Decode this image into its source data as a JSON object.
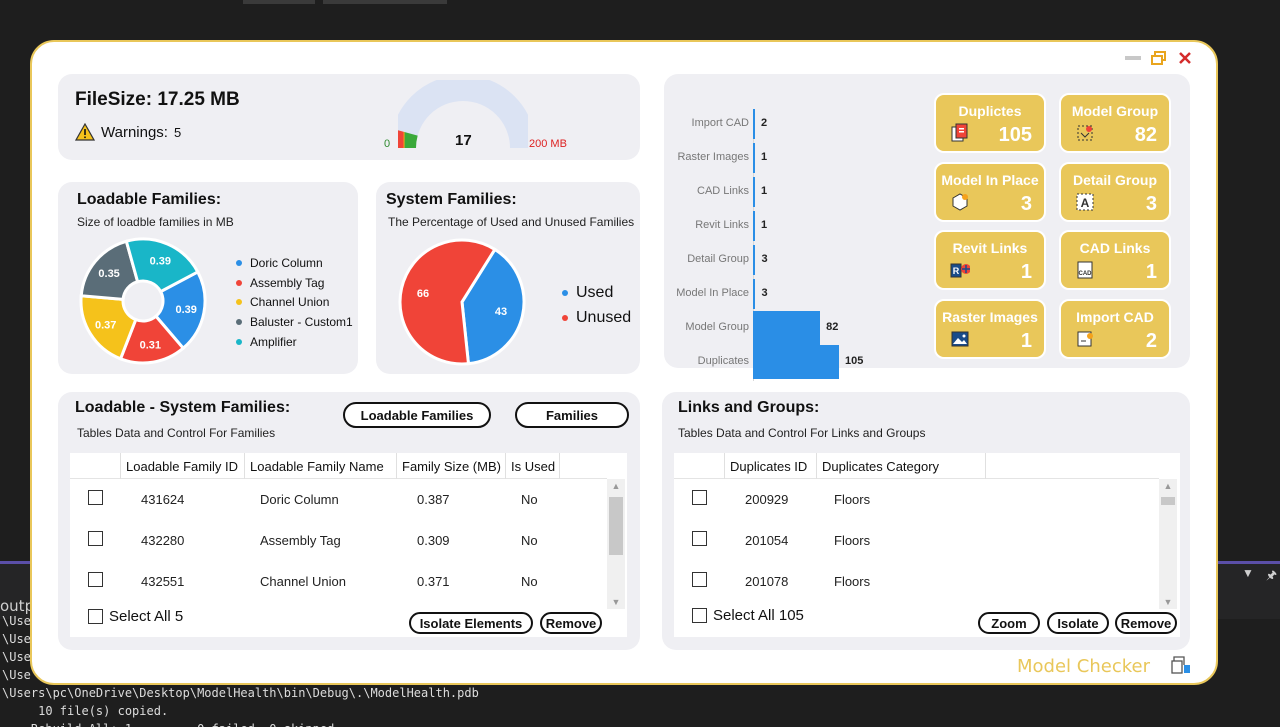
{
  "ide": {
    "output_title": "outpu",
    "log_lines": [
      "\\Use",
      "\\Use",
      "\\Use",
      "\\Use",
      "\\Users\\pc\\OneDrive\\Desktop\\ModelHealth\\bin\\Debug\\.\\ModelHealth.pdb",
      "     10 file(s) copied.",
      "    Rebuild All: 1 ... ... 0 failed, 0 skipped"
    ]
  },
  "window": {
    "minimize_icon": "minimize-icon",
    "restore_icon": "restore-icon",
    "close_icon": "close-icon",
    "brand": "Model Checker",
    "accent_color": "#e9c75a"
  },
  "filesize": {
    "title": "FileSize: 17.25 MB",
    "warnings_label": "Warnings:",
    "warnings_count": "5",
    "gauge_value": "17",
    "gauge_min": "0",
    "gauge_max": "200 MB",
    "gauge_fraction": 0.085
  },
  "loadable": {
    "title": "Loadable Families:",
    "subtitle": "Size of loadble families in MB",
    "chart_data": {
      "type": "pie",
      "series": [
        {
          "name": "Doric Column",
          "value": 0.39,
          "label": "0.39",
          "color": "#2b8fe6"
        },
        {
          "name": "Assembly Tag",
          "value": 0.31,
          "label": "0.31",
          "color": "#f04438"
        },
        {
          "name": "Channel Union",
          "value": 0.37,
          "label": "0.37",
          "color": "#f5c21b"
        },
        {
          "name": "Baluster - Custom1",
          "value": 0.35,
          "label": "0.35",
          "color": "#5a6d78"
        },
        {
          "name": "Amplifier",
          "value": 0.39,
          "label": "0.39",
          "color": "#19b6c8"
        }
      ]
    }
  },
  "system": {
    "title": "System Families:",
    "subtitle": "The Percentage of Used and Unused Families",
    "chart_data": {
      "type": "pie",
      "series": [
        {
          "name": "Used",
          "value": 43,
          "label": "43",
          "color": "#2b8fe6"
        },
        {
          "name": "Unused",
          "value": 66,
          "label": "66",
          "color": "#f04438"
        }
      ]
    }
  },
  "bars": {
    "chart_data": {
      "type": "bar",
      "categories": [
        "Import CAD",
        "Raster Images",
        "CAD Links",
        "Revit Links",
        "Detail Group",
        "Model In Place",
        "Model Group",
        "Duplicates"
      ],
      "values": [
        2,
        1,
        1,
        1,
        3,
        3,
        82,
        105
      ],
      "labels": [
        "2",
        "1",
        "1",
        "1",
        "3",
        "3",
        "82",
        "105"
      ]
    }
  },
  "cards": [
    {
      "title": "Duplictes",
      "value": "105",
      "icon": "duplicates-icon"
    },
    {
      "title": "Model Group",
      "value": "82",
      "icon": "model-group-icon"
    },
    {
      "title": "Model In Place",
      "value": "3",
      "icon": "model-in-place-icon"
    },
    {
      "title": "Detail Group",
      "value": "3",
      "icon": "detail-group-icon"
    },
    {
      "title": "Revit Links",
      "value": "1",
      "icon": "revit-links-icon"
    },
    {
      "title": "CAD Links",
      "value": "1",
      "icon": "cad-links-icon"
    },
    {
      "title": "Raster Images",
      "value": "1",
      "icon": "raster-images-icon"
    },
    {
      "title": "Import CAD",
      "value": "2",
      "icon": "import-cad-icon"
    }
  ],
  "families_table": {
    "title": "Loadable - System Families:",
    "subtitle": "Tables Data and Control For Families",
    "btn_loadable": "Loadable Families",
    "btn_families": "Families",
    "columns": [
      "Loadable Family ID",
      "Loadable Family Name",
      "Family Size (MB)",
      "Is Used"
    ],
    "rows": [
      {
        "id": "431624",
        "name": "Doric Column",
        "size": "0.387",
        "used": "No"
      },
      {
        "id": "432280",
        "name": "Assembly Tag",
        "size": "0.309",
        "used": "No"
      },
      {
        "id": "432551",
        "name": "Channel Union",
        "size": "0.371",
        "used": "No"
      }
    ],
    "select_all": "Select All 5",
    "btn_isolate": "Isolate Elements",
    "btn_remove": "Remove"
  },
  "links_table": {
    "title": "Links and Groups:",
    "subtitle": "Tables Data and Control For Links and Groups",
    "columns": [
      "Duplicates ID",
      "Duplicates Category"
    ],
    "rows": [
      {
        "id": "200929",
        "category": "Floors"
      },
      {
        "id": "201054",
        "category": "Floors"
      },
      {
        "id": "201078",
        "category": "Floors"
      }
    ],
    "select_all": "Select All 105",
    "btn_zoom": "Zoom",
    "btn_isolate": "Isolate",
    "btn_remove": "Remove"
  }
}
